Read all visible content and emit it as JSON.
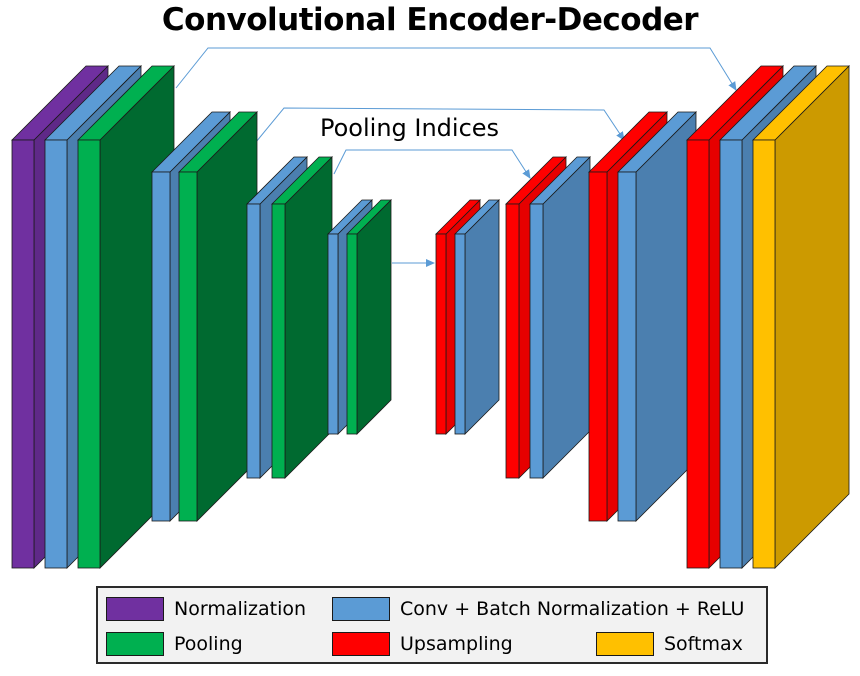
{
  "title": "Convolutional Encoder-Decoder",
  "pooling_label": "Pooling Indices",
  "colors": {
    "normalization": "#7030a0",
    "conv": "#5b9bd5",
    "pooling": "#00b050",
    "upsampling": "#ff0000",
    "softmax": "#ffc000"
  },
  "legend": {
    "normalization": "Normalization",
    "conv": "Conv + Batch Normalization + ReLU",
    "pooling": "Pooling",
    "upsampling": "Upsampling",
    "softmax": "Softmax"
  },
  "encoder_stages": [
    {
      "layers": [
        "normalization",
        "conv",
        "pooling"
      ]
    },
    {
      "layers": [
        "conv",
        "pooling"
      ]
    },
    {
      "layers": [
        "conv",
        "pooling"
      ]
    },
    {
      "layers": [
        "conv",
        "pooling"
      ]
    }
  ],
  "decoder_stages": [
    {
      "layers": [
        "upsampling",
        "conv"
      ]
    },
    {
      "layers": [
        "upsampling",
        "conv"
      ]
    },
    {
      "layers": [
        "upsampling",
        "conv"
      ]
    },
    {
      "layers": [
        "upsampling",
        "conv",
        "softmax"
      ]
    }
  ]
}
